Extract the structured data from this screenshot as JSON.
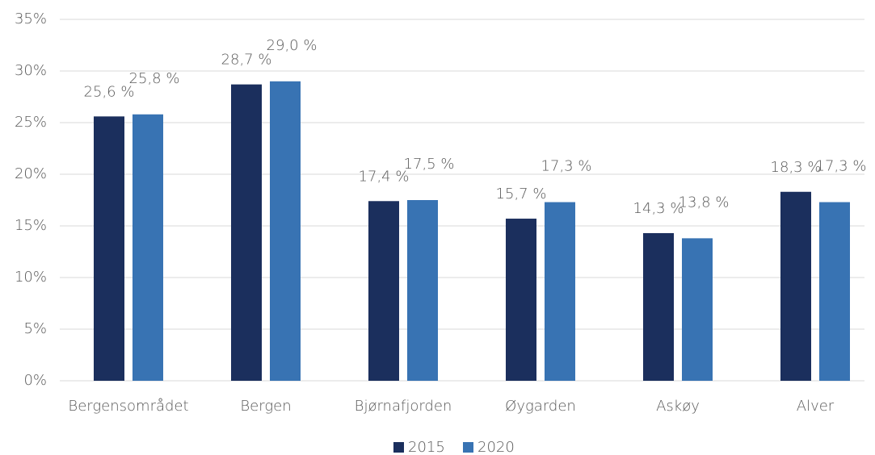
{
  "chart_data": {
    "type": "bar",
    "categories": [
      "Bergensområdet",
      "Bergen",
      "Bjørnafjorden",
      "Øygarden",
      "Askøy",
      "Alver"
    ],
    "series": [
      {
        "name": "2015",
        "color": "#1b2f5d",
        "values": [
          25.6,
          28.7,
          17.4,
          15.7,
          14.3,
          18.3
        ],
        "value_labels": [
          "25,6 %",
          "28,7 %",
          "17,4 %",
          "15,7 %",
          "14,3 %",
          "18,3 %"
        ]
      },
      {
        "name": "2020",
        "color": "#3873b3",
        "values": [
          25.8,
          29.0,
          17.5,
          17.3,
          13.8,
          17.3
        ],
        "value_labels": [
          "25,8 %",
          "29,0 %",
          "17,5 %",
          "17,3 %",
          "13,8 %",
          "17,3 %"
        ]
      }
    ],
    "ylim": [
      0,
      35
    ],
    "yticks": [
      {
        "value": 0,
        "label": "0%"
      },
      {
        "value": 5,
        "label": "5%"
      },
      {
        "value": 10,
        "label": "10%"
      },
      {
        "value": 15,
        "label": "15%"
      },
      {
        "value": 20,
        "label": "20%"
      },
      {
        "value": 25,
        "label": "25%"
      },
      {
        "value": 30,
        "label": "30%"
      },
      {
        "value": 35,
        "label": "35%"
      }
    ],
    "grid": true,
    "legend": "bottom"
  }
}
